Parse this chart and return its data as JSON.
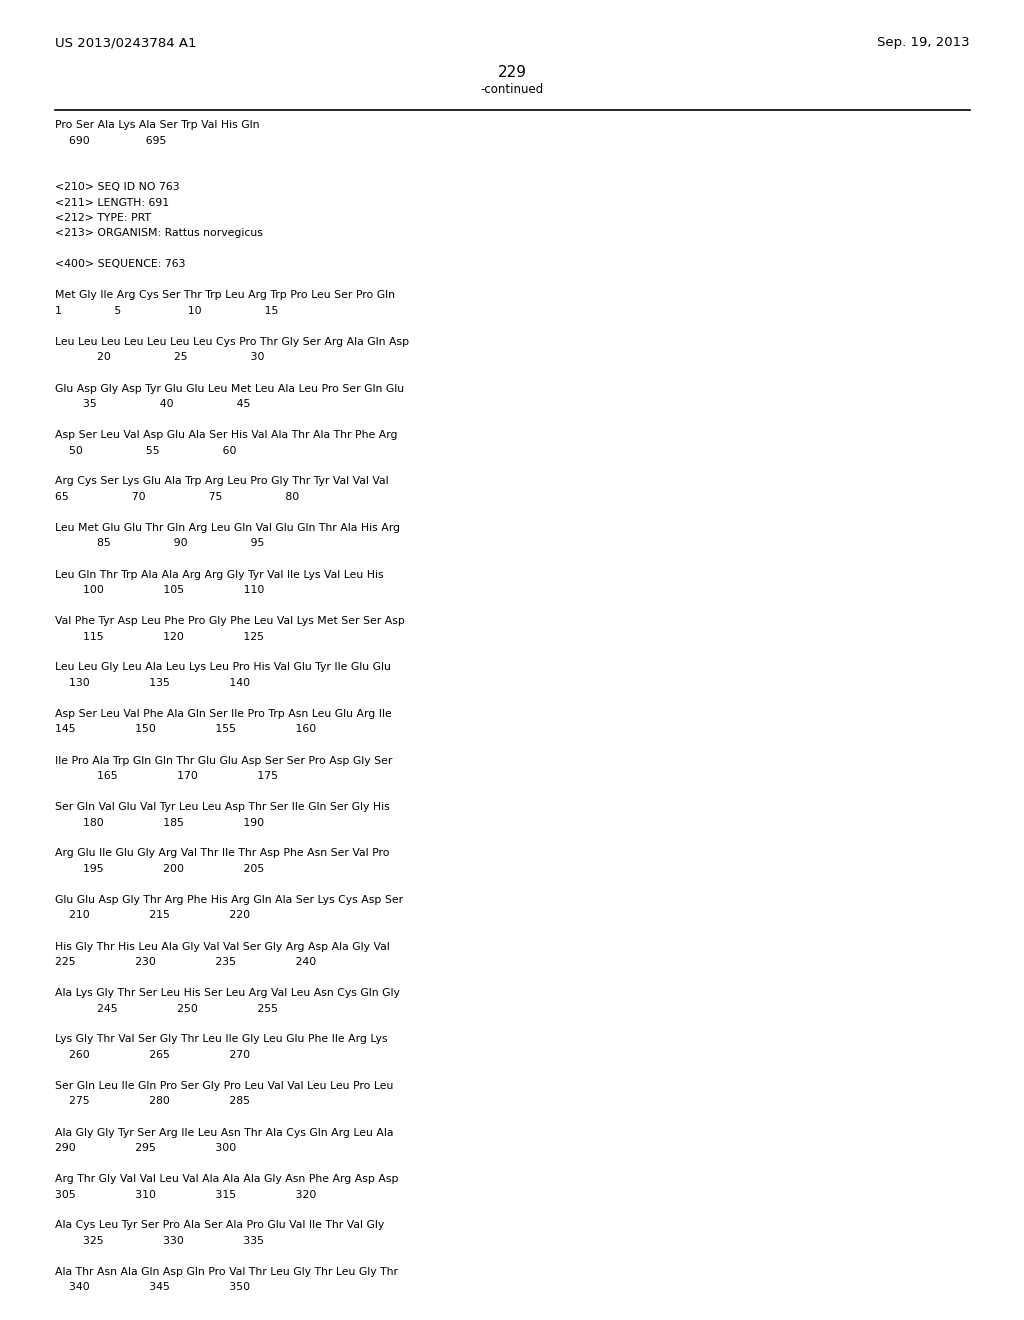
{
  "header_left": "US 2013/0243784 A1",
  "header_right": "Sep. 19, 2013",
  "page_number": "229",
  "continued_label": "-continued",
  "bg_color": "#ffffff",
  "text_color": "#000000",
  "content_lines": [
    "Pro Ser Ala Lys Ala Ser Trp Val His Gln",
    "    690                695",
    "",
    "",
    "<210> SEQ ID NO 763",
    "<211> LENGTH: 691",
    "<212> TYPE: PRT",
    "<213> ORGANISM: Rattus norvegicus",
    "",
    "<400> SEQUENCE: 763",
    "",
    "Met Gly Ile Arg Cys Ser Thr Trp Leu Arg Trp Pro Leu Ser Pro Gln",
    "1               5                   10                  15",
    "",
    "Leu Leu Leu Leu Leu Leu Leu Cys Pro Thr Gly Ser Arg Ala Gln Asp",
    "            20                  25                  30",
    "",
    "Glu Asp Gly Asp Tyr Glu Glu Leu Met Leu Ala Leu Pro Ser Gln Glu",
    "        35                  40                  45",
    "",
    "Asp Ser Leu Val Asp Glu Ala Ser His Val Ala Thr Ala Thr Phe Arg",
    "    50                  55                  60",
    "",
    "Arg Cys Ser Lys Glu Ala Trp Arg Leu Pro Gly Thr Tyr Val Val Val",
    "65                  70                  75                  80",
    "",
    "Leu Met Glu Glu Thr Gln Arg Leu Gln Val Glu Gln Thr Ala His Arg",
    "            85                  90                  95",
    "",
    "Leu Gln Thr Trp Ala Ala Arg Arg Gly Tyr Val Ile Lys Val Leu His",
    "        100                 105                 110",
    "",
    "Val Phe Tyr Asp Leu Phe Pro Gly Phe Leu Val Lys Met Ser Ser Asp",
    "        115                 120                 125",
    "",
    "Leu Leu Gly Leu Ala Leu Lys Leu Pro His Val Glu Tyr Ile Glu Glu",
    "    130                 135                 140",
    "",
    "Asp Ser Leu Val Phe Ala Gln Ser Ile Pro Trp Asn Leu Glu Arg Ile",
    "145                 150                 155                 160",
    "",
    "Ile Pro Ala Trp Gln Gln Thr Glu Glu Asp Ser Ser Pro Asp Gly Ser",
    "            165                 170                 175",
    "",
    "Ser Gln Val Glu Val Tyr Leu Leu Asp Thr Ser Ile Gln Ser Gly His",
    "        180                 185                 190",
    "",
    "Arg Glu Ile Glu Gly Arg Val Thr Ile Thr Asp Phe Asn Ser Val Pro",
    "        195                 200                 205",
    "",
    "Glu Glu Asp Gly Thr Arg Phe His Arg Gln Ala Ser Lys Cys Asp Ser",
    "    210                 215                 220",
    "",
    "His Gly Thr His Leu Ala Gly Val Val Ser Gly Arg Asp Ala Gly Val",
    "225                 230                 235                 240",
    "",
    "Ala Lys Gly Thr Ser Leu His Ser Leu Arg Val Leu Asn Cys Gln Gly",
    "            245                 250                 255",
    "",
    "Lys Gly Thr Val Ser Gly Thr Leu Ile Gly Leu Glu Phe Ile Arg Lys",
    "    260                 265                 270",
    "",
    "Ser Gln Leu Ile Gln Pro Ser Gly Pro Leu Val Val Leu Leu Pro Leu",
    "    275                 280                 285",
    "",
    "Ala Gly Gly Tyr Ser Arg Ile Leu Asn Thr Ala Cys Gln Arg Leu Ala",
    "290                 295                 300",
    "",
    "Arg Thr Gly Val Val Leu Val Ala Ala Ala Gly Asn Phe Arg Asp Asp",
    "305                 310                 315                 320",
    "",
    "Ala Cys Leu Tyr Ser Pro Ala Ser Ala Pro Glu Val Ile Thr Val Gly",
    "        325                 330                 335",
    "",
    "Ala Thr Asn Ala Gln Asp Gln Pro Val Thr Leu Gly Thr Leu Gly Thr",
    "    340                 345                 350"
  ]
}
